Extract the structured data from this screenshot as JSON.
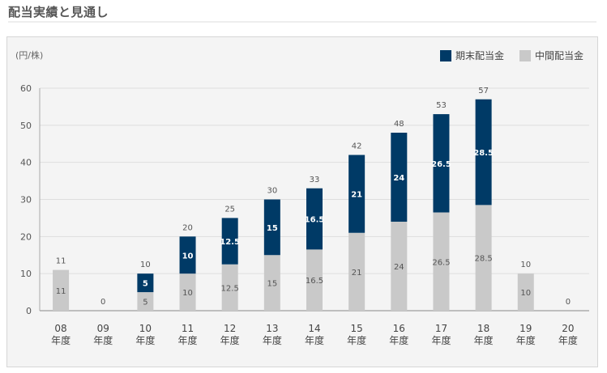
{
  "section": {
    "title": "配当実績と見通し"
  },
  "chart_data": {
    "type": "bar",
    "stacked": true,
    "unit_label": "(円/株)",
    "categories": [
      {
        "num": "08",
        "suffix": "年度"
      },
      {
        "num": "09",
        "suffix": "年度"
      },
      {
        "num": "10",
        "suffix": "年度"
      },
      {
        "num": "11",
        "suffix": "年度"
      },
      {
        "num": "12",
        "suffix": "年度"
      },
      {
        "num": "13",
        "suffix": "年度"
      },
      {
        "num": "14",
        "suffix": "年度"
      },
      {
        "num": "15",
        "suffix": "年度"
      },
      {
        "num": "16",
        "suffix": "年度"
      },
      {
        "num": "17",
        "suffix": "年度"
      },
      {
        "num": "18",
        "suffix": "年度"
      },
      {
        "num": "19",
        "suffix": "年度"
      },
      {
        "num": "20",
        "suffix": "年度"
      }
    ],
    "series": [
      {
        "name": "中間配当金",
        "color": "#c9c9c9",
        "label_color": "#555555",
        "values": [
          11,
          0,
          5,
          10,
          12.5,
          15,
          16.5,
          21,
          24,
          26.5,
          28.5,
          10,
          0
        ]
      },
      {
        "name": "期末配当金",
        "color": "#003a66",
        "label_color": "#ffffff",
        "values": [
          0,
          0,
          5,
          10,
          12.5,
          15,
          16.5,
          21,
          24,
          26.5,
          28.5,
          0,
          0
        ]
      }
    ],
    "totals": [
      11,
      0,
      10,
      20,
      25,
      30,
      33,
      42,
      48,
      53,
      57,
      10,
      0
    ],
    "ylim": [
      0,
      60
    ],
    "yticks": [
      0,
      10,
      20,
      30,
      40,
      50,
      60
    ],
    "grid": true,
    "legend_position": "top-right",
    "legend_order": [
      1,
      0
    ]
  }
}
